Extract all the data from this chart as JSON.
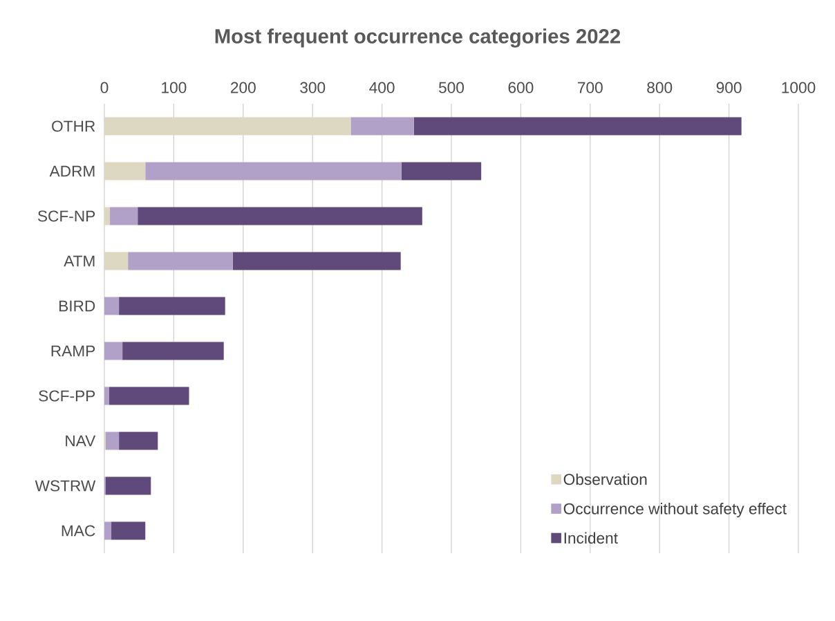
{
  "chart_data": {
    "type": "bar",
    "orientation": "horizontal",
    "stacked": true,
    "title": "Most frequent occurrence categories 2022",
    "categories": [
      "OTHR",
      "ADRM",
      "SCF-NP",
      "ATM",
      "BIRD",
      "RAMP",
      "SCF-PP",
      "NAV",
      "WSTRW",
      "MAC"
    ],
    "series": [
      {
        "name": "Observation",
        "color": "#ddd8c2",
        "values": [
          355,
          59,
          8,
          34,
          0,
          0,
          0,
          2,
          0,
          0
        ]
      },
      {
        "name": "Occurrence without safety effect",
        "color": "#b1a0c7",
        "values": [
          91,
          369,
          40,
          151,
          21,
          26,
          7,
          19,
          2,
          10
        ]
      },
      {
        "name": "Incident",
        "color": "#604a7b",
        "values": [
          472,
          115,
          410,
          242,
          153,
          146,
          115,
          56,
          65,
          49
        ]
      }
    ],
    "xlim": [
      0,
      1000
    ],
    "xticks": [
      0,
      100,
      200,
      300,
      400,
      500,
      600,
      700,
      800,
      900,
      1000
    ],
    "grid": "x",
    "legend": "bottom right"
  }
}
